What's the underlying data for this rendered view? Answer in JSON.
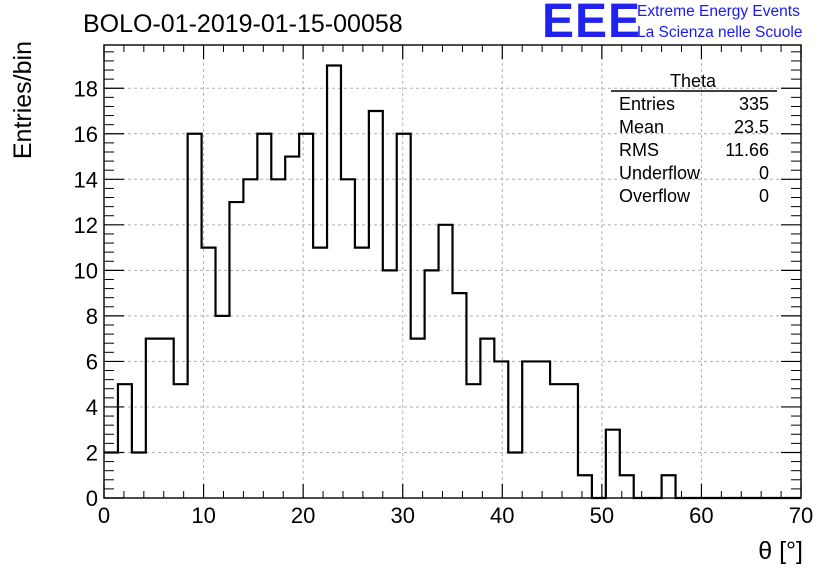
{
  "header": {
    "title": "BOLO-01-2019-01-15-00058"
  },
  "logo": {
    "letters": "EEE",
    "line1": "Extreme Energy Events",
    "line2": "La Scienza nelle Scuole"
  },
  "stats": {
    "title": "Theta",
    "rows": [
      {
        "label": "Entries",
        "value": "335"
      },
      {
        "label": "Mean",
        "value": "23.5"
      },
      {
        "label": "RMS",
        "value": "11.66"
      },
      {
        "label": "Underflow",
        "value": "0"
      },
      {
        "label": "Overflow",
        "value": "0"
      }
    ]
  },
  "colors": {
    "line": "#000000",
    "grid": "#b0b0b0",
    "logo": "#2222ee"
  },
  "chart_data": {
    "type": "bar",
    "style": "step-histogram",
    "xlabel": "θ [°]",
    "ylabel": "Entries/bin",
    "xlim": [
      0,
      70
    ],
    "ylim": [
      0,
      19.9
    ],
    "bin_width": 1.4,
    "grid": true,
    "x_ticks": [
      0,
      10,
      20,
      30,
      40,
      50,
      60,
      70
    ],
    "y_ticks": [
      0,
      2,
      4,
      6,
      8,
      10,
      12,
      14,
      16,
      18
    ],
    "values": [
      2,
      5,
      2,
      7,
      7,
      5,
      16,
      11,
      8,
      13,
      14,
      16,
      14,
      15,
      16,
      11,
      19,
      14,
      11,
      17,
      10,
      16,
      7,
      10,
      12,
      9,
      5,
      7,
      6,
      2,
      6,
      6,
      5,
      5,
      1,
      0,
      3,
      1,
      0,
      0,
      1,
      0,
      0,
      0,
      0,
      0,
      0,
      0,
      0,
      0
    ]
  }
}
